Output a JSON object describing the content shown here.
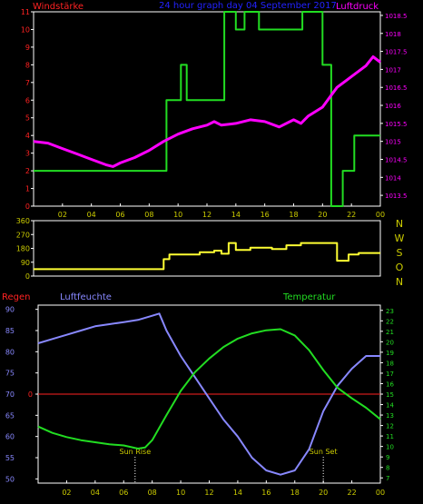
{
  "colors": {
    "background": "#000000",
    "frame": "#ffffff",
    "wind_speed": "#22dd22",
    "pressure": "#ff00ff",
    "direction": "#ffff33",
    "title": "#2222ff",
    "humidity": "#8888ff",
    "temperature": "#22dd22",
    "rain": "#ff2222",
    "tick_text": "#cccc00"
  },
  "chart_data": [
    {
      "type": "line",
      "title": "24 hour graph day   04 September 2017",
      "left_axis_label": "Windstärke",
      "right_axis_label": "Luftdruck",
      "x_tick_labels": [
        "02",
        "04",
        "06",
        "08",
        "10",
        "12",
        "14",
        "16",
        "18",
        "20",
        "22",
        "00"
      ],
      "y_left_ticks": [
        "0",
        "1",
        "2",
        "3",
        "4",
        "5",
        "6",
        "7",
        "8",
        "9",
        "10",
        "11"
      ],
      "y_right_ticks": [
        "1013.5",
        "1014",
        "1014.5",
        "1015",
        "1015.5",
        "1016",
        "1016.5",
        "1017",
        "1017.5",
        "1018",
        "1018.5"
      ],
      "ylim_left": [
        0,
        11
      ],
      "ylim_right": [
        1013.2,
        1018.6
      ],
      "xlim_hours": [
        0,
        24
      ],
      "series": [
        {
          "name": "Windstärke",
          "axis": "left",
          "step": true,
          "x": [
            0,
            9.2,
            9.2,
            10.2,
            10.2,
            10.6,
            10.6,
            13.2,
            13.2,
            14.0,
            14.0,
            14.6,
            14.6,
            15.6,
            15.6,
            18.6,
            18.6,
            20.0,
            20.0,
            20.6,
            20.6,
            21.4,
            21.4,
            22.2,
            22.2,
            24
          ],
          "y": [
            2,
            2,
            6,
            6,
            8,
            8,
            6,
            6,
            11,
            11,
            10,
            10,
            11,
            11,
            10,
            10,
            11,
            11,
            8,
            8,
            0,
            0,
            2,
            2,
            4,
            4
          ]
        },
        {
          "name": "Luftdruck",
          "axis": "right",
          "step": false,
          "x": [
            0,
            1,
            2,
            3,
            4,
            5,
            5.5,
            6,
            7,
            8,
            9,
            10,
            11,
            12,
            12.5,
            13,
            14,
            15,
            16,
            17,
            18,
            18.5,
            19,
            20,
            21,
            22,
            23,
            23.5,
            24
          ],
          "y": [
            1015.0,
            1014.95,
            1014.8,
            1014.65,
            1014.5,
            1014.35,
            1014.3,
            1014.4,
            1014.55,
            1014.75,
            1015.0,
            1015.2,
            1015.35,
            1015.45,
            1015.55,
            1015.45,
            1015.5,
            1015.6,
            1015.55,
            1015.4,
            1015.6,
            1015.5,
            1015.7,
            1015.95,
            1016.5,
            1016.8,
            1017.1,
            1017.35,
            1017.2
          ]
        }
      ]
    },
    {
      "type": "line",
      "x_tick_labels": [],
      "y_left_ticks": [
        "0",
        "90",
        "180",
        "270",
        "360"
      ],
      "right_labels": [
        "N",
        "W",
        "S",
        "O",
        "N"
      ],
      "ylim": [
        0,
        360
      ],
      "xlim_hours": [
        0,
        24
      ],
      "series": [
        {
          "name": "",
          "step": true,
          "x": [
            0,
            9.0,
            9.0,
            9.4,
            9.4,
            11.5,
            11.5,
            12.5,
            12.5,
            13.0,
            13.0,
            13.5,
            13.5,
            14.0,
            14.0,
            15.0,
            15.0,
            16.5,
            16.5,
            17.5,
            17.5,
            18.5,
            18.5,
            21.0,
            21.0,
            21.8,
            21.8,
            22.5,
            22.5,
            24
          ],
          "y": [
            45,
            45,
            110,
            110,
            140,
            140,
            155,
            155,
            165,
            165,
            145,
            145,
            215,
            215,
            170,
            170,
            185,
            185,
            175,
            175,
            200,
            200,
            215,
            215,
            100,
            100,
            140,
            140,
            150,
            150
          ]
        }
      ]
    },
    {
      "type": "line",
      "left_axis_label": "Regen",
      "mid_axis_label": "Luftfeuchte",
      "right_axis_label": "Temperatur",
      "x_tick_labels": [
        "02",
        "04",
        "06",
        "08",
        "10",
        "12",
        "14",
        "16",
        "18",
        "20",
        "22",
        "00"
      ],
      "y_left_ticks": [
        "50",
        "55",
        "60",
        "65",
        "70",
        "75",
        "80",
        "85",
        "90"
      ],
      "y_right_ticks": [
        "7",
        "8",
        "9",
        "10",
        "11",
        "12",
        "13",
        "14",
        "15",
        "16",
        "17",
        "18",
        "19",
        "20",
        "21",
        "22",
        "23"
      ],
      "rain_tick": "0",
      "ylim_left": [
        49,
        91
      ],
      "ylim_right": [
        6.5,
        23.5
      ],
      "xlim_hours": [
        0,
        24
      ],
      "annotations": [
        {
          "text": "Sun Rise",
          "x": 6.8
        },
        {
          "text": "Sun Set",
          "x": 20.0
        }
      ],
      "series": [
        {
          "name": "Regen",
          "axis": "rain",
          "x": [
            0,
            24
          ],
          "y": [
            0,
            0
          ]
        },
        {
          "name": "Luftfeuchte",
          "axis": "left",
          "x": [
            0,
            1,
            2,
            3,
            4,
            5,
            6,
            7,
            8,
            8.5,
            9,
            10,
            11,
            12,
            13,
            14,
            15,
            16,
            17,
            18,
            19,
            20,
            21,
            22,
            23,
            24
          ],
          "y": [
            82,
            83,
            84,
            85,
            86,
            86.5,
            87,
            87.5,
            88.5,
            89,
            85,
            79,
            74,
            69,
            64,
            60,
            55,
            52,
            51,
            52,
            57,
            66,
            72,
            76,
            79,
            79
          ]
        },
        {
          "name": "Temperatur",
          "axis": "right",
          "x": [
            0,
            1,
            2,
            3,
            4,
            5,
            6,
            7,
            7.5,
            8,
            9,
            10,
            11,
            12,
            13,
            14,
            15,
            16,
            17,
            18,
            19,
            20,
            21,
            22,
            23,
            24
          ],
          "y": [
            11.9,
            11.3,
            10.9,
            10.6,
            10.4,
            10.2,
            10.1,
            9.8,
            9.9,
            10.6,
            13.0,
            15.3,
            17.1,
            18.4,
            19.5,
            20.3,
            20.8,
            21.1,
            21.2,
            20.6,
            19.2,
            17.3,
            15.6,
            14.6,
            13.7,
            12.6
          ]
        }
      ]
    }
  ]
}
